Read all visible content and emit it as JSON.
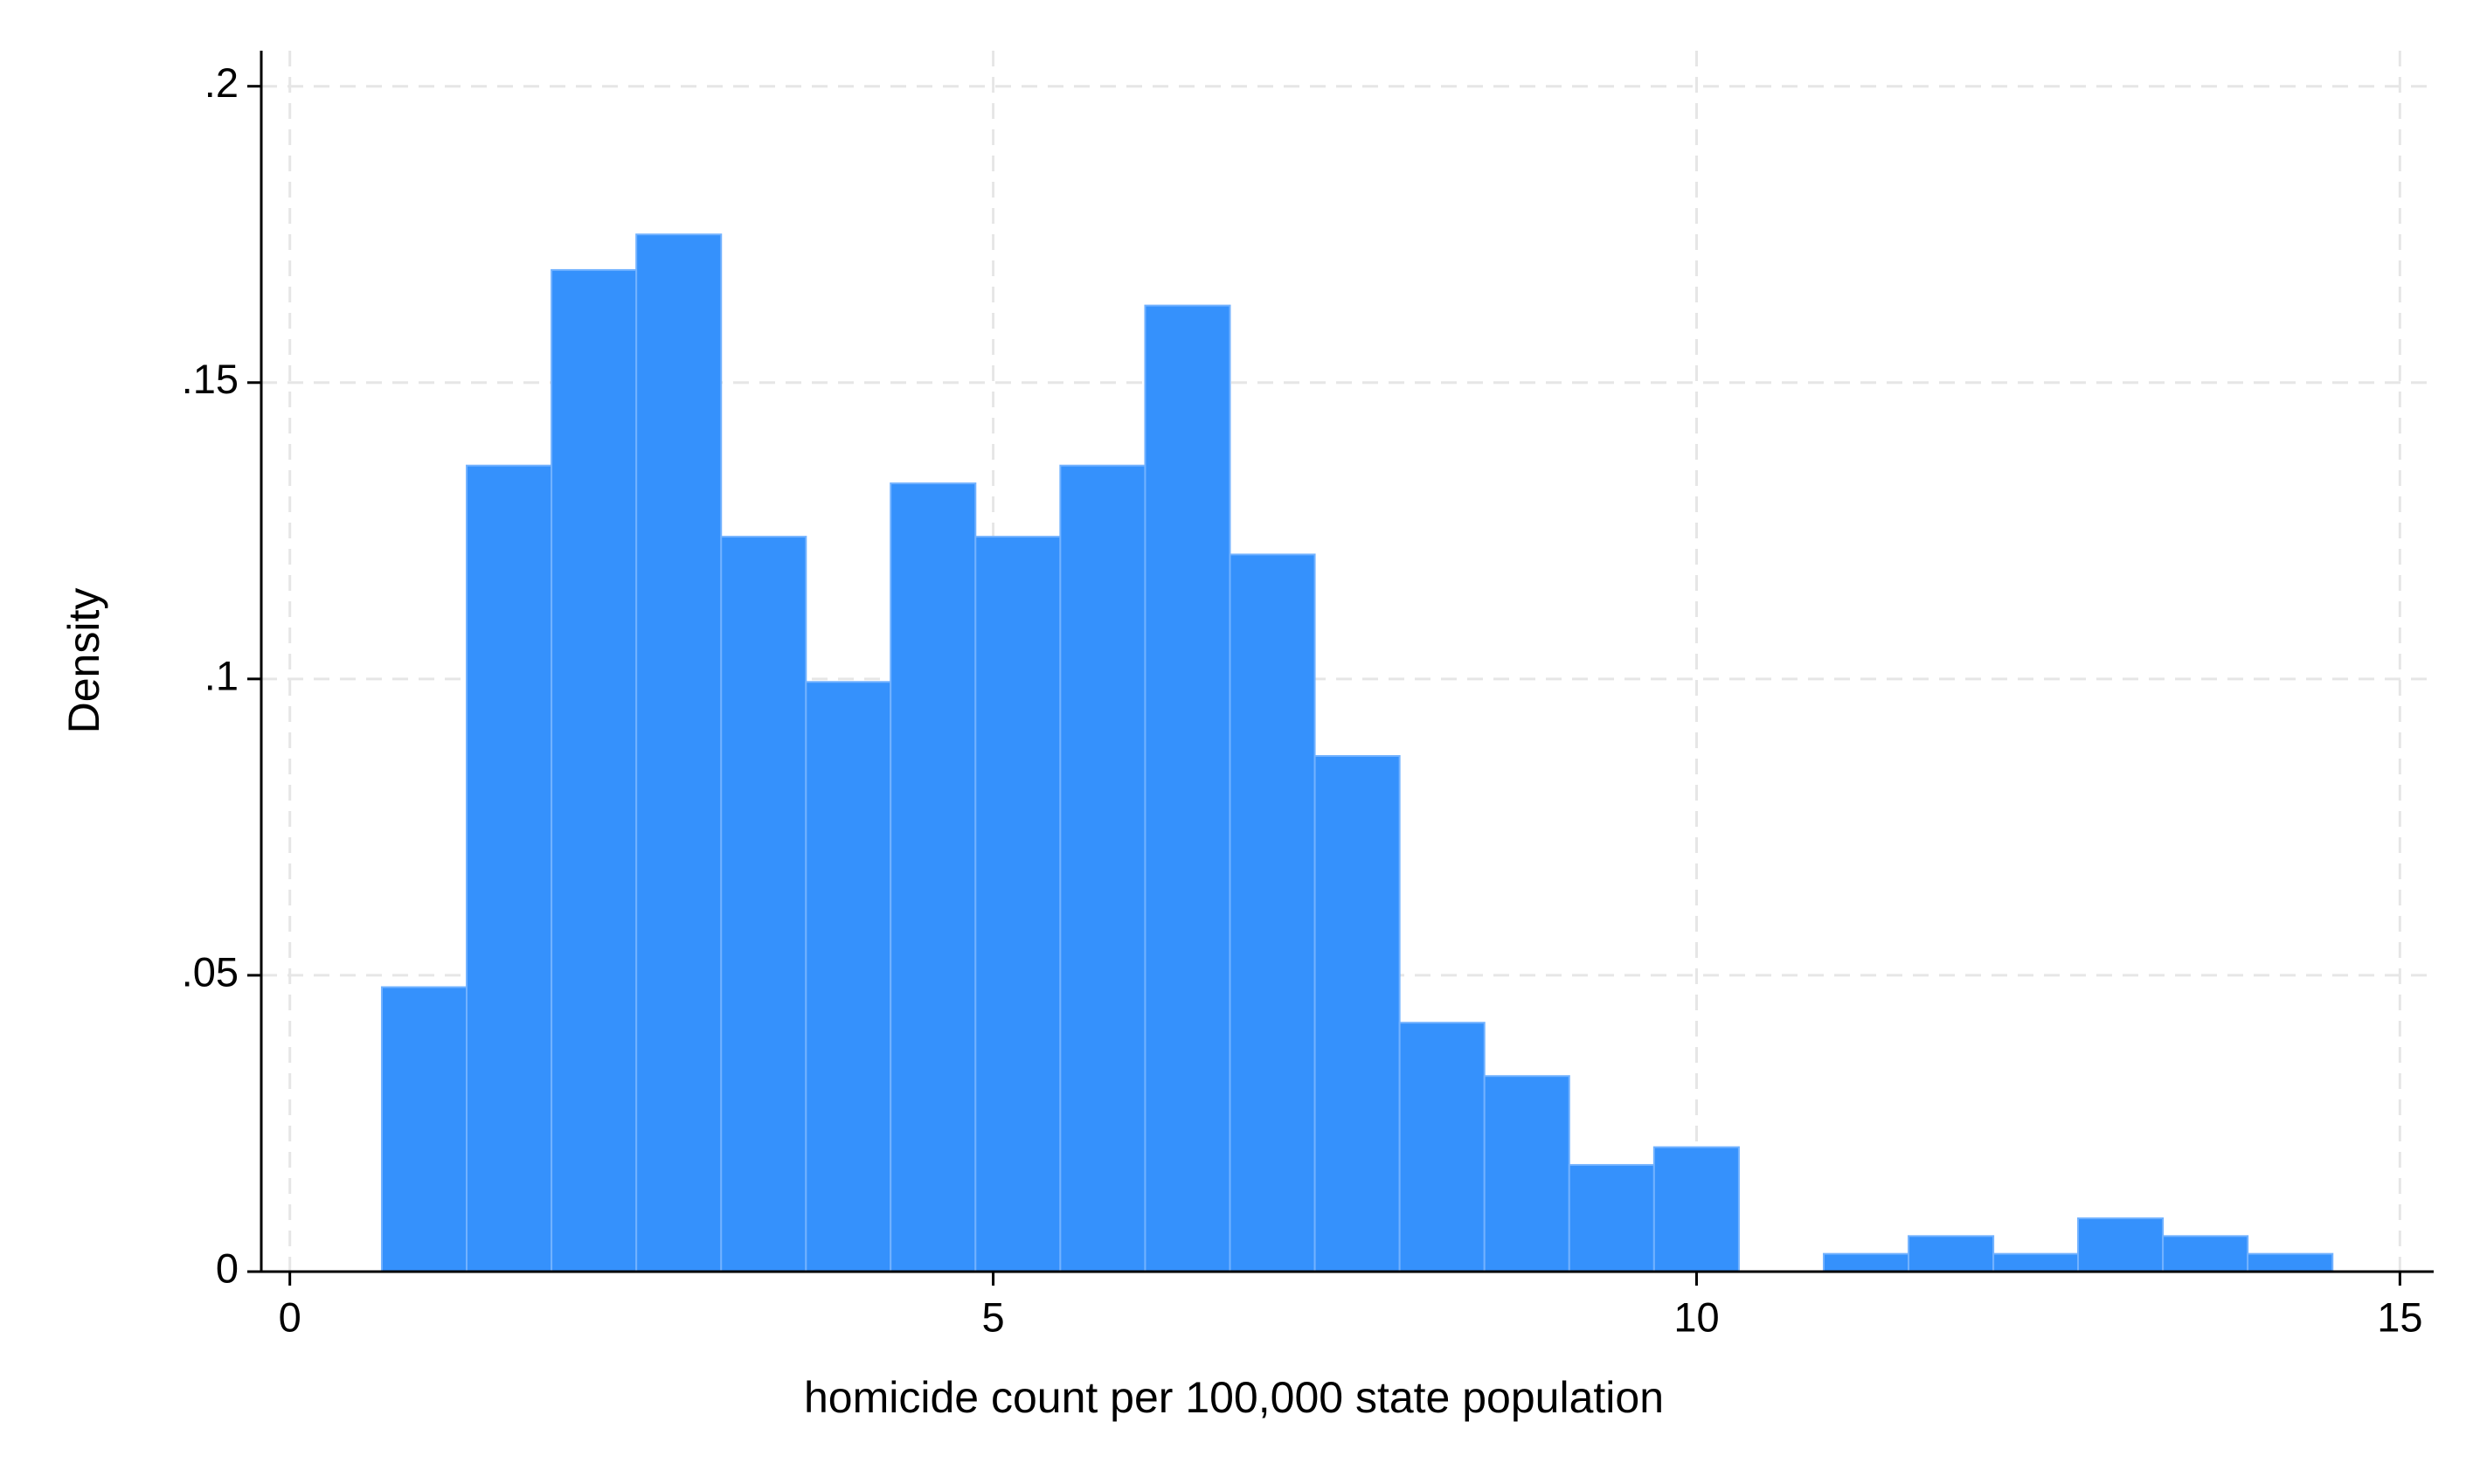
{
  "chart_data": {
    "type": "histogram",
    "x_label": "homicide count per 100,000 state population",
    "y_label": "Density",
    "bins": [
      0.654,
      1.257,
      1.86,
      2.463,
      3.066,
      3.669,
      4.271,
      4.874,
      5.477,
      6.08,
      6.683,
      7.286,
      7.889,
      8.492,
      9.095,
      9.698,
      10.301,
      10.904,
      11.507,
      12.11,
      12.712,
      13.315,
      13.918,
      14.521
    ],
    "values": [
      0.048,
      0.136,
      0.169,
      0.175,
      0.124,
      0.0995,
      0.133,
      0.124,
      0.136,
      0.163,
      0.121,
      0.087,
      0.042,
      0.033,
      0.018,
      0.021,
      0,
      0.003,
      0.006,
      0.003,
      0.009,
      0.006,
      0.003
    ],
    "color": "#3591fc",
    "xlim": [
      -0.203,
      15.24
    ],
    "ylim": [
      0,
      0.206
    ],
    "xticks": [
      0,
      5,
      10,
      15
    ],
    "yticks": [
      0,
      {
        "value": 0.05,
        "label": ".05"
      },
      {
        "value": 0.1,
        "label": ".1"
      },
      {
        "value": 0.15,
        "label": ".15"
      },
      {
        "value": 0.2,
        "label": ".2"
      }
    ],
    "grid": true
  }
}
